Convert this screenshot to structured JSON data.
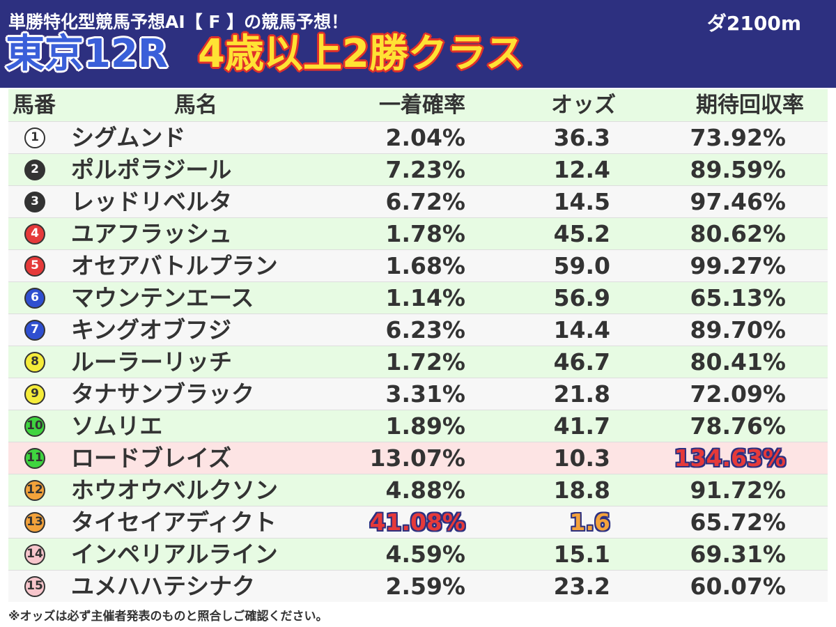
{
  "header": {
    "subtitle": "単勝特化型競馬予想AI【 F 】の競馬予想！",
    "distance": "ダ2100m",
    "race_name": "東京12R",
    "race_class": "4歳以上2勝クラス",
    "background": "#2d3080"
  },
  "table": {
    "columns": [
      "馬番",
      "馬名",
      "一着確率",
      "オッズ",
      "期待回収率"
    ],
    "rows": [
      {
        "num": "1",
        "name": "シグムンド",
        "prob": "2.04%",
        "odds": "36.3",
        "exp": "73.92%",
        "num_bg": "#ffffff",
        "num_fg": "#333333",
        "row_color": "white"
      },
      {
        "num": "2",
        "name": "ポルポラジール",
        "prob": "7.23%",
        "odds": "12.4",
        "exp": "89.59%",
        "num_bg": "#333333",
        "num_fg": "#ffffff",
        "row_color": "green"
      },
      {
        "num": "3",
        "name": "レッドリベルタ",
        "prob": "6.72%",
        "odds": "14.5",
        "exp": "97.46%",
        "num_bg": "#333333",
        "num_fg": "#ffffff",
        "row_color": "white"
      },
      {
        "num": "4",
        "name": "ユアフラッシュ",
        "prob": "1.78%",
        "odds": "45.2",
        "exp": "80.62%",
        "num_bg": "#e53a3a",
        "num_fg": "#ffffff",
        "row_color": "green"
      },
      {
        "num": "5",
        "name": "オセアバトルプラン",
        "prob": "1.68%",
        "odds": "59.0",
        "exp": "99.27%",
        "num_bg": "#e53a3a",
        "num_fg": "#ffffff",
        "row_color": "white"
      },
      {
        "num": "6",
        "name": "マウンテンエース",
        "prob": "1.14%",
        "odds": "56.9",
        "exp": "65.13%",
        "num_bg": "#2f4fd0",
        "num_fg": "#ffffff",
        "row_color": "green"
      },
      {
        "num": "7",
        "name": "キングオブフジ",
        "prob": "6.23%",
        "odds": "14.4",
        "exp": "89.70%",
        "num_bg": "#2f4fd0",
        "num_fg": "#ffffff",
        "row_color": "white"
      },
      {
        "num": "8",
        "name": "ルーラーリッチ",
        "prob": "1.72%",
        "odds": "46.7",
        "exp": "80.41%",
        "num_bg": "#f5ec3a",
        "num_fg": "#333333",
        "row_color": "green"
      },
      {
        "num": "9",
        "name": "タナサンブラック",
        "prob": "3.31%",
        "odds": "21.8",
        "exp": "72.09%",
        "num_bg": "#f5ec3a",
        "num_fg": "#333333",
        "row_color": "white"
      },
      {
        "num": "10",
        "name": "ソムリエ",
        "prob": "1.89%",
        "odds": "41.7",
        "exp": "78.76%",
        "num_bg": "#3fd43f",
        "num_fg": "#333333",
        "row_color": "green"
      },
      {
        "num": "11",
        "name": "ロードブレイズ",
        "prob": "13.07%",
        "odds": "10.3",
        "exp": "134.63%",
        "num_bg": "#3fd43f",
        "num_fg": "#333333",
        "row_color": "pink",
        "highlight_exp": true
      },
      {
        "num": "12",
        "name": "ホウオウベルクソン",
        "prob": "4.88%",
        "odds": "18.8",
        "exp": "91.72%",
        "num_bg": "#f3a23b",
        "num_fg": "#333333",
        "row_color": "green"
      },
      {
        "num": "13",
        "name": "タイセイアディクト",
        "prob": "41.08%",
        "odds": "1.6",
        "exp": "65.72%",
        "num_bg": "#f3a23b",
        "num_fg": "#333333",
        "row_color": "white",
        "highlight_prob": true,
        "highlight_odds": true
      },
      {
        "num": "14",
        "name": "インペリアルライン",
        "prob": "4.59%",
        "odds": "15.1",
        "exp": "69.31%",
        "num_bg": "#f7c6cc",
        "num_fg": "#333333",
        "row_color": "green"
      },
      {
        "num": "15",
        "name": "ユメハハテシナク",
        "prob": "2.59%",
        "odds": "23.2",
        "exp": "60.07%",
        "num_bg": "#f7c6cc",
        "num_fg": "#333333",
        "row_color": "white"
      }
    ]
  },
  "footnote": "※オッズは必ず主催者発表のものと照合しご確認ください。"
}
